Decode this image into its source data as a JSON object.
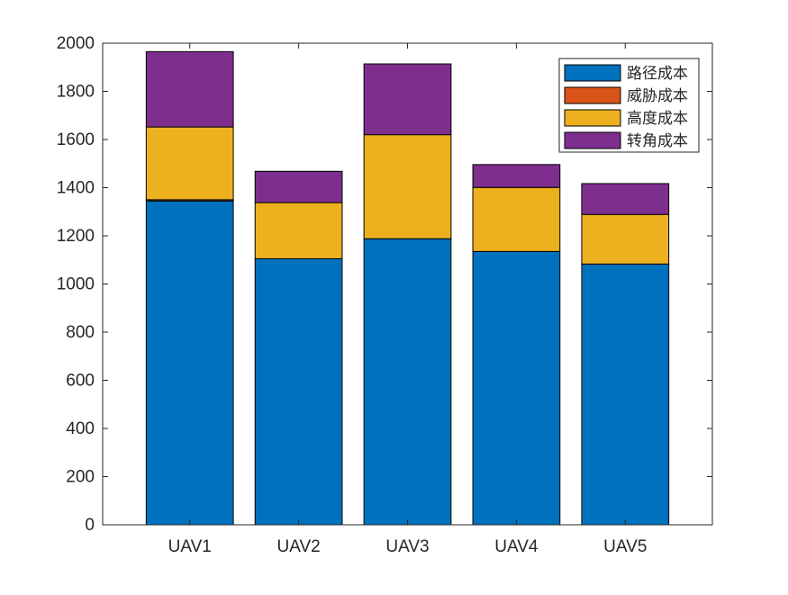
{
  "chart_data": {
    "type": "bar",
    "stacked": true,
    "categories": [
      "UAV1",
      "UAV2",
      "UAV3",
      "UAV4",
      "UAV5"
    ],
    "series": [
      {
        "name": "路径成本",
        "color": "#0072BD",
        "values": [
          1345,
          1105,
          1188,
          1135,
          1083
        ]
      },
      {
        "name": "威胁成本",
        "color": "#D95319",
        "values": [
          5,
          0,
          0,
          0,
          0
        ]
      },
      {
        "name": "高度成本",
        "color": "#EDB120",
        "values": [
          302,
          233,
          432,
          266,
          206
        ]
      },
      {
        "name": "转角成本",
        "color": "#7E2F8E",
        "values": [
          313,
          130,
          294,
          95,
          128
        ]
      }
    ],
    "ylim": [
      0,
      2000
    ],
    "yticks": [
      0,
      200,
      400,
      600,
      800,
      1000,
      1200,
      1400,
      1600,
      1800,
      2000
    ],
    "xlabel": "",
    "ylabel": "",
    "title": "",
    "grid": false,
    "legend_position": "top-right"
  }
}
